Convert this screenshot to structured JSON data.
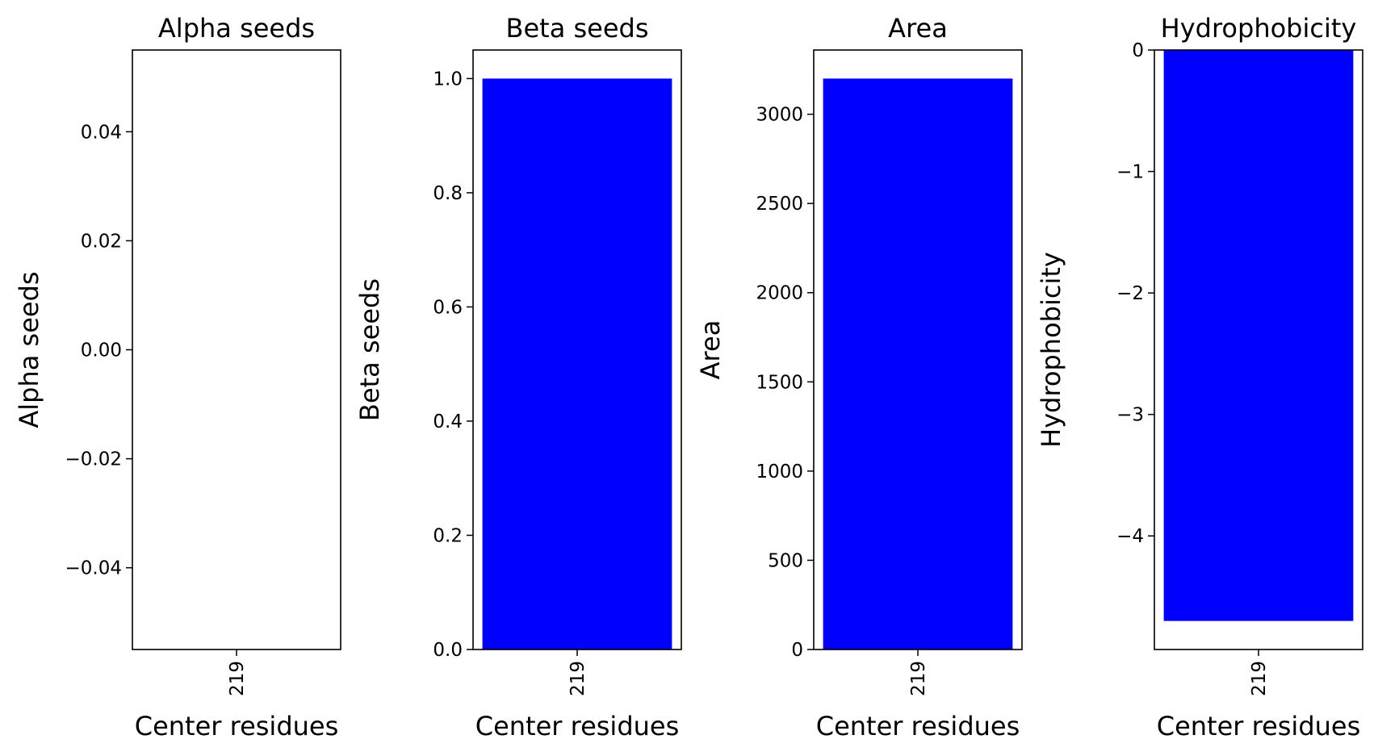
{
  "colors": {
    "bar": "#0000ff",
    "axis": "#000000",
    "background": "#ffffff"
  },
  "chart_data": [
    {
      "type": "bar",
      "title": "Alpha seeds",
      "xlabel": "Center residues",
      "ylabel": "Alpha seeds",
      "categories": [
        "219"
      ],
      "values": [
        0
      ],
      "ylim": [
        -0.055,
        0.055
      ],
      "yticks": [
        -0.04,
        -0.02,
        0.0,
        0.02,
        0.04
      ],
      "ytick_labels": [
        "−0.04",
        "−0.02",
        "0.00",
        "0.02",
        "0.04"
      ],
      "grid": false
    },
    {
      "type": "bar",
      "title": "Beta seeds",
      "xlabel": "Center residues",
      "ylabel": "Beta seeds",
      "categories": [
        "219"
      ],
      "values": [
        1.0
      ],
      "ylim": [
        0,
        1.05
      ],
      "yticks": [
        0.0,
        0.2,
        0.4,
        0.6,
        0.8,
        1.0
      ],
      "ytick_labels": [
        "0.0",
        "0.2",
        "0.4",
        "0.6",
        "0.8",
        "1.0"
      ],
      "grid": false
    },
    {
      "type": "bar",
      "title": "Area",
      "xlabel": "Center residues",
      "ylabel": "Area",
      "categories": [
        "219"
      ],
      "values": [
        3200
      ],
      "ylim": [
        0,
        3360
      ],
      "yticks": [
        0,
        500,
        1000,
        1500,
        2000,
        2500,
        3000
      ],
      "ytick_labels": [
        "0",
        "500",
        "1000",
        "1500",
        "2000",
        "2500",
        "3000"
      ],
      "grid": false
    },
    {
      "type": "bar",
      "title": "Hydrophobicity",
      "xlabel": "Center residues",
      "ylabel": "Hydrophobicity",
      "categories": [
        "219"
      ],
      "values": [
        -4.7
      ],
      "ylim": [
        -4.935,
        0
      ],
      "yticks": [
        -4,
        -3,
        -2,
        -1,
        0
      ],
      "ytick_labels": [
        "−4",
        "−3",
        "−2",
        "−1",
        "0"
      ],
      "grid": false
    }
  ]
}
